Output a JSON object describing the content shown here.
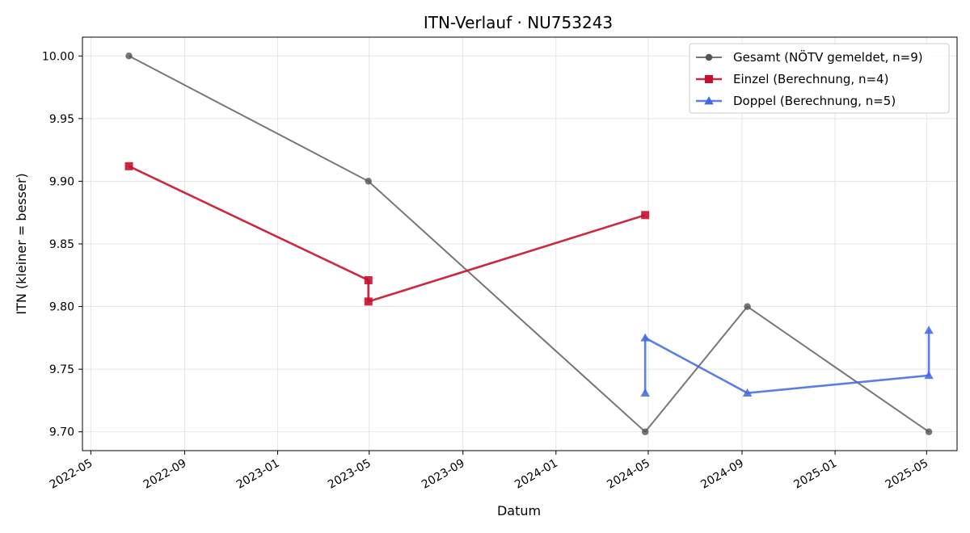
{
  "chart_data": {
    "type": "line",
    "title": "ITN-Verlauf · NU753243",
    "xlabel": "Datum",
    "ylabel": "ITN  (kleiner = besser)",
    "ylim": [
      9.685,
      10.015
    ],
    "xlim": [
      "2022-04-20",
      "2025-06-10"
    ],
    "x_ticks": [
      "2022-05",
      "2022-09",
      "2023-01",
      "2023-05",
      "2023-09",
      "2024-01",
      "2024-05",
      "2024-09",
      "2025-01",
      "2025-05"
    ],
    "y_ticks": [
      "9.70",
      "9.75",
      "9.80",
      "9.85",
      "9.90",
      "9.95",
      "10.00"
    ],
    "grid": true,
    "legend_position": "top-right",
    "series": [
      {
        "name": "Gesamt (NÖTV gemeldet, n=9)",
        "color": "#555555",
        "marker": "circle",
        "x": [
          "2022-06-20",
          "2023-04-30",
          "2024-04-27",
          "2024-09-08",
          "2025-05-04"
        ],
        "y": [
          10.0,
          9.9,
          9.7,
          9.8,
          9.7
        ]
      },
      {
        "name": "Einzel (Berechnung, n=4)",
        "color": "#c8102e",
        "marker": "square",
        "x": [
          "2022-06-20",
          "2023-04-30",
          "2023-04-30",
          "2024-04-27"
        ],
        "y": [
          9.912,
          9.821,
          9.804,
          9.873
        ]
      },
      {
        "name": "Doppel (Berechnung, n=5)",
        "color": "#4169e1",
        "marker": "triangle",
        "x": [
          "2024-04-27",
          "2024-04-27",
          "2024-09-08",
          "2025-05-04",
          "2025-05-04"
        ],
        "y": [
          9.731,
          9.775,
          9.731,
          9.745,
          9.781
        ]
      }
    ]
  }
}
